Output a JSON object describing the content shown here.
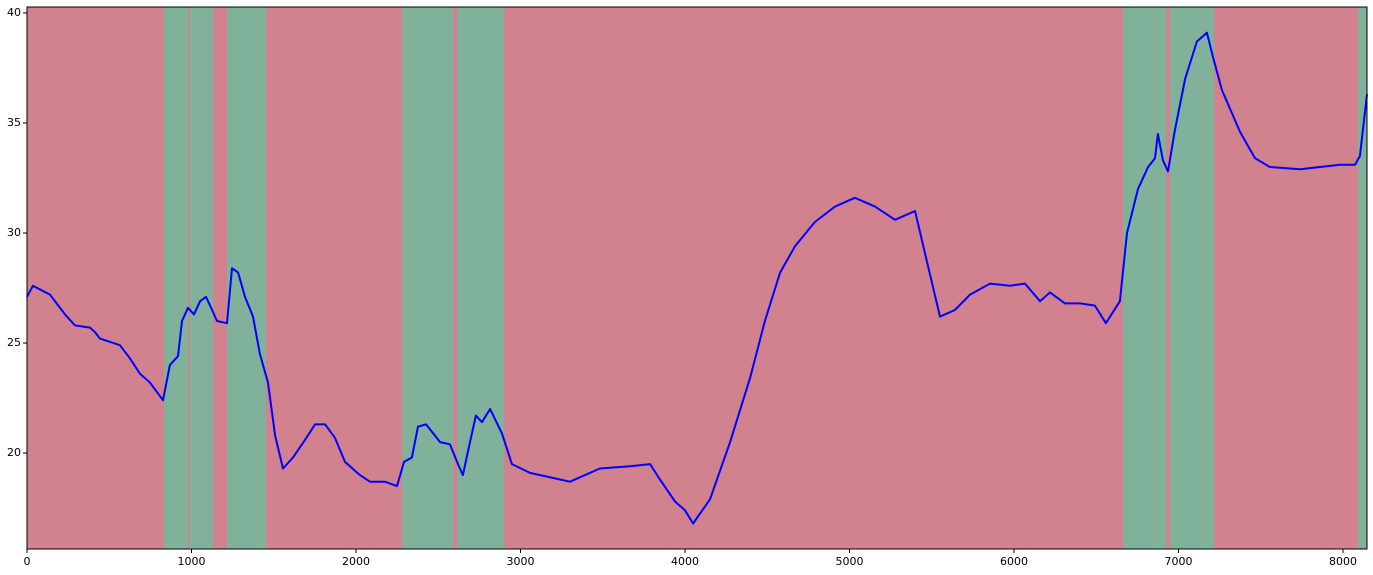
{
  "chart_data": {
    "type": "line",
    "x": [
      0,
      36,
      140,
      231,
      292,
      383,
      413,
      444,
      565,
      626,
      687,
      748,
      827,
      869,
      918,
      942,
      979,
      1015,
      1052,
      1088,
      1125,
      1155,
      1216,
      1246,
      1283,
      1325,
      1374,
      1416,
      1465,
      1508,
      1556,
      1617,
      1690,
      1751,
      1812,
      1872,
      1933,
      2024,
      2085,
      2176,
      2249,
      2292,
      2340,
      2377,
      2426,
      2511,
      2571,
      2620,
      2650,
      2693,
      2729,
      2766,
      2815,
      2887,
      2948,
      3058,
      3240,
      3301,
      3483,
      3666,
      3787,
      3848,
      3939,
      4000,
      4049,
      4152,
      4274,
      4395,
      4486,
      4578,
      4669,
      4790,
      4912,
      5033,
      5155,
      5277,
      5398,
      5477,
      5550,
      5641,
      5733,
      5854,
      5976,
      6067,
      6158,
      6219,
      6310,
      6401,
      6492,
      6559,
      6644,
      6687,
      6754,
      6815,
      6857,
      6875,
      6906,
      6936,
      6979,
      7040,
      7112,
      7173,
      7210,
      7264,
      7374,
      7465,
      7556,
      7739,
      7982,
      8073,
      8103,
      8146
    ],
    "series": [
      {
        "color": "#0000ff",
        "values": [
          27.1,
          27.6,
          27.2,
          26.3,
          25.8,
          25.7,
          25.5,
          25.2,
          24.9,
          24.3,
          23.6,
          23.2,
          22.4,
          24.0,
          24.4,
          26.0,
          26.6,
          26.3,
          26.9,
          27.1,
          26.5,
          26.0,
          25.9,
          28.4,
          28.2,
          27.1,
          26.2,
          24.5,
          23.2,
          20.8,
          19.3,
          19.8,
          20.6,
          21.3,
          21.3,
          20.7,
          19.6,
          19.0,
          18.7,
          18.7,
          18.5,
          19.6,
          19.8,
          21.2,
          21.3,
          20.5,
          20.4,
          19.5,
          19.0,
          20.5,
          21.7,
          21.4,
          22.0,
          20.9,
          19.5,
          19.1,
          18.8,
          18.7,
          19.3,
          19.4,
          19.5,
          18.8,
          17.8,
          17.4,
          16.8,
          17.9,
          20.5,
          23.4,
          26.0,
          28.2,
          29.4,
          30.5,
          31.2,
          31.6,
          31.2,
          30.6,
          31.0,
          28.5,
          26.2,
          26.5,
          27.2,
          27.7,
          27.6,
          27.7,
          26.9,
          27.3,
          26.8,
          26.8,
          26.7,
          25.9,
          26.9,
          30.0,
          32.0,
          33.0,
          33.4,
          34.5,
          33.3,
          32.8,
          34.7,
          37.0,
          38.7,
          39.1,
          38.0,
          36.5,
          34.6,
          33.4,
          33.0,
          32.9,
          33.1,
          33.1,
          33.5,
          36.3
        ]
      }
    ],
    "background_color": "#d2818f",
    "region_color": "#7fb19b",
    "regions": [
      {
        "start": 833,
        "end": 980
      },
      {
        "start": 990,
        "end": 1131
      },
      {
        "start": 1216,
        "end": 1453
      },
      {
        "start": 2280,
        "end": 2590
      },
      {
        "start": 2614,
        "end": 2900
      },
      {
        "start": 6663,
        "end": 6924
      },
      {
        "start": 6948,
        "end": 7216
      },
      {
        "start": 8091,
        "end": 8146
      }
    ],
    "xlim": [
      0,
      8146
    ],
    "xticks": [
      0,
      1000,
      2000,
      3000,
      4000,
      5000,
      6000,
      7000,
      8000
    ],
    "ylim": [
      15.64,
      40.27
    ],
    "yticks": [
      20,
      25,
      30,
      35,
      40
    ]
  }
}
